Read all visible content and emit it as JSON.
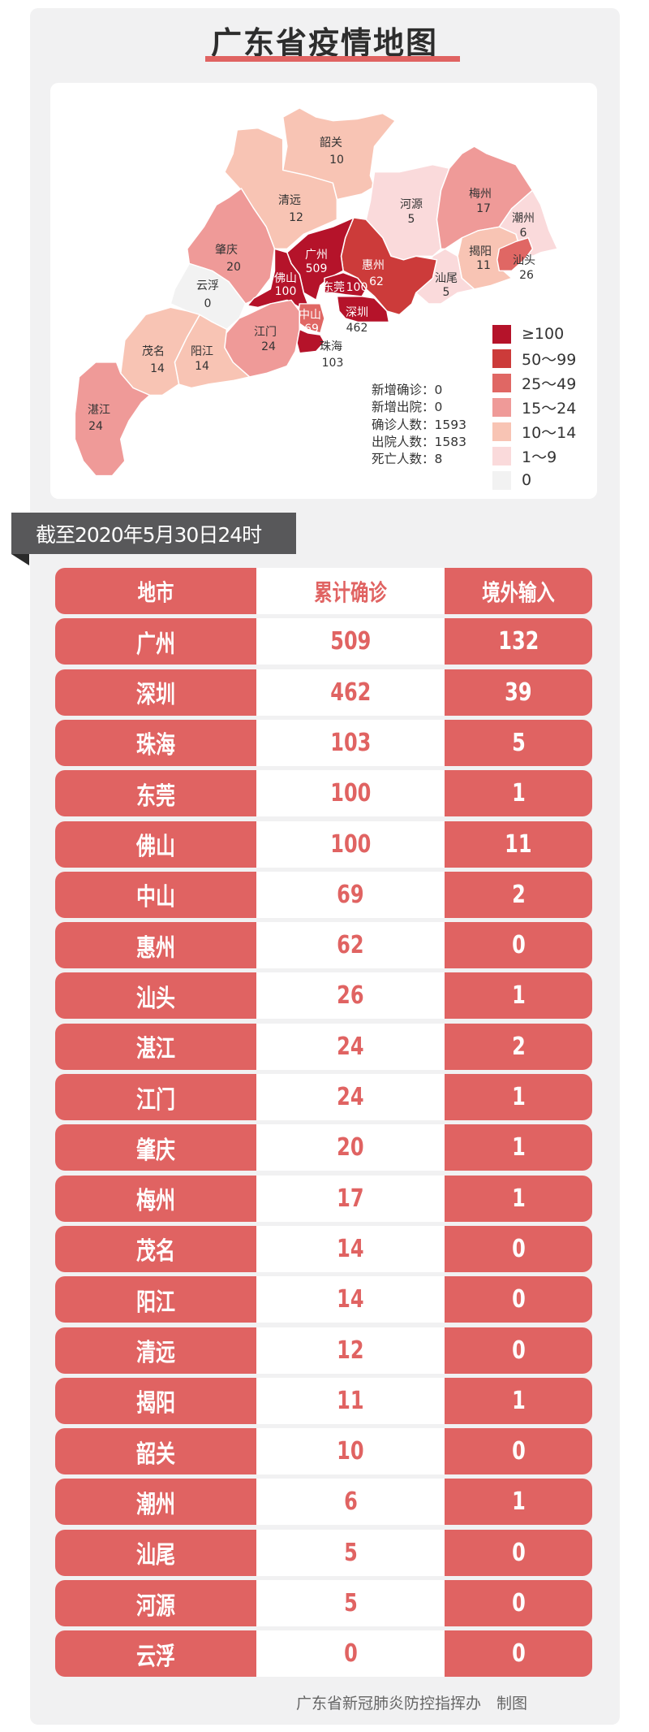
{
  "title": "广东省疫情地图",
  "map": {
    "regions": {
      "shaoguan": {
        "name": "韶关",
        "value": "10"
      },
      "qingyuan": {
        "name": "清远",
        "value": "12"
      },
      "heyuan": {
        "name": "河源",
        "value": "5"
      },
      "meizhou": {
        "name": "梅州",
        "value": "17"
      },
      "chaozhou": {
        "name": "潮州",
        "value": "6"
      },
      "zhaoqing": {
        "name": "肇庆",
        "value": "20"
      },
      "guangzhou": {
        "name": "广州",
        "value": "509"
      },
      "huizhou": {
        "name": "惠州",
        "value": "62"
      },
      "jieyang": {
        "name": "揭阳",
        "value": "11"
      },
      "shantou": {
        "name": "汕头",
        "value": "26"
      },
      "yunfu": {
        "name": "云浮",
        "value": "0"
      },
      "foshan": {
        "name": "佛山",
        "value": "100"
      },
      "dongguan": {
        "name": "东莞",
        "value": "100"
      },
      "shanwei": {
        "name": "汕尾",
        "value": "5"
      },
      "shenzhen": {
        "name": "深圳",
        "value": "462"
      },
      "zhongshan": {
        "name": "中山",
        "value": "69"
      },
      "jiangmen": {
        "name": "江门",
        "value": "24"
      },
      "zhuhai": {
        "name": "珠海",
        "value": "103"
      },
      "maoming": {
        "name": "茂名",
        "value": "14"
      },
      "yangjiang": {
        "name": "阳江",
        "value": "14"
      },
      "zhanjiang": {
        "name": "湛江",
        "value": "24"
      }
    },
    "legend": [
      {
        "label": "≥100",
        "color": "#b5132a"
      },
      {
        "label": "50～99",
        "color": "#cc3b3a"
      },
      {
        "label": "25～49",
        "color": "#e06764"
      },
      {
        "label": "15～24",
        "color": "#ef9a98"
      },
      {
        "label": "10～14",
        "color": "#f8c4b4"
      },
      {
        "label": "1～9",
        "color": "#fadadb"
      },
      {
        "label": "0",
        "color": "#f2f2f2"
      }
    ],
    "stats": [
      "新增确诊：0",
      "新增出院：0",
      "确诊人数：1593",
      "出院人数：1583",
      "死亡人数：8"
    ]
  },
  "date_banner": "截至2020年5月30日24时",
  "table": {
    "headers": [
      "地市",
      "累计确诊",
      "境外输入"
    ],
    "rows": [
      [
        "广州",
        "509",
        "132"
      ],
      [
        "深圳",
        "462",
        "39"
      ],
      [
        "珠海",
        "103",
        "5"
      ],
      [
        "东莞",
        "100",
        "1"
      ],
      [
        "佛山",
        "100",
        "11"
      ],
      [
        "中山",
        "69",
        "2"
      ],
      [
        "惠州",
        "62",
        "0"
      ],
      [
        "汕头",
        "26",
        "1"
      ],
      [
        "湛江",
        "24",
        "2"
      ],
      [
        "江门",
        "24",
        "1"
      ],
      [
        "肇庆",
        "20",
        "1"
      ],
      [
        "梅州",
        "17",
        "1"
      ],
      [
        "茂名",
        "14",
        "0"
      ],
      [
        "阳江",
        "14",
        "0"
      ],
      [
        "清远",
        "12",
        "0"
      ],
      [
        "揭阳",
        "11",
        "1"
      ],
      [
        "韶关",
        "10",
        "0"
      ],
      [
        "潮州",
        "6",
        "1"
      ],
      [
        "汕尾",
        "5",
        "0"
      ],
      [
        "河源",
        "5",
        "0"
      ],
      [
        "云浮",
        "0",
        "0"
      ]
    ]
  },
  "footer": "广东省新冠肺炎防控指挥办　制图",
  "colors": {
    "accent": "#e06362",
    "banner": "#58585a",
    "background": "#f1f1f2"
  }
}
